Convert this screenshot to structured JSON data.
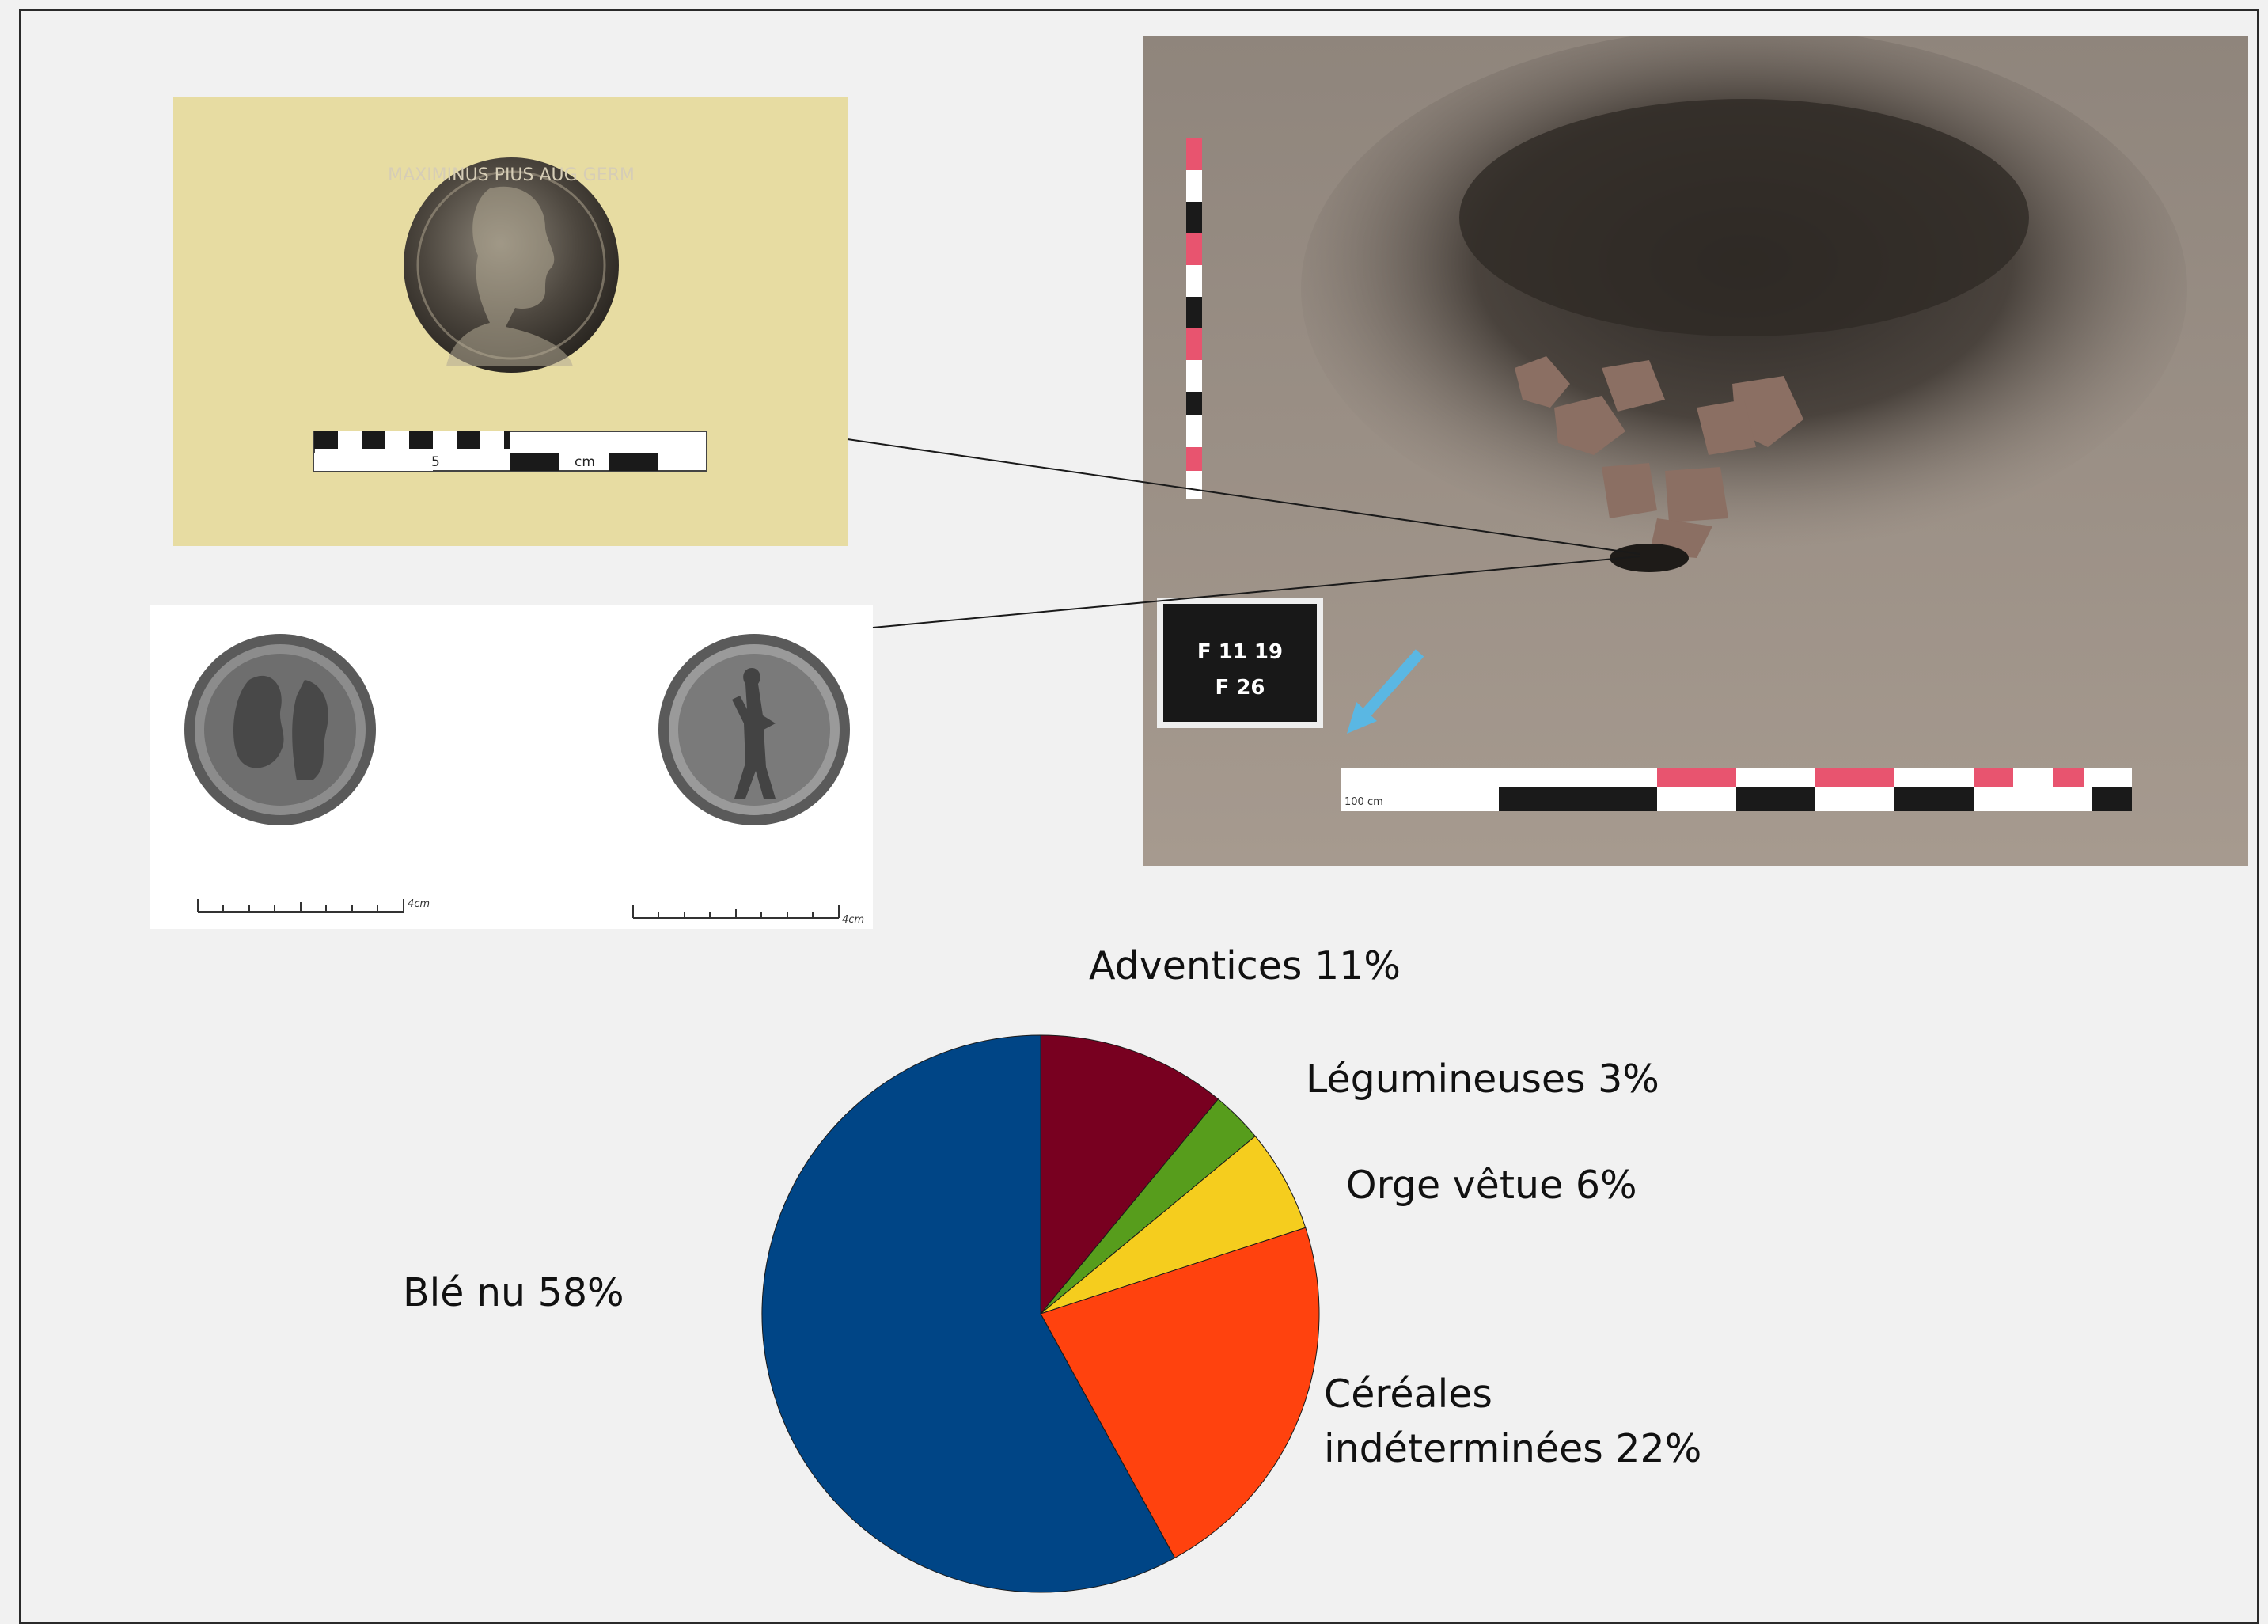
{
  "coin_photo": {
    "scale_number": "5",
    "scale_unit": "cm",
    "legend": "MAXIMINUS PIUS AUG GERM"
  },
  "coin_drawing": {
    "scale_left": "4cm",
    "scale_right": "4cm"
  },
  "excavation_photo": {
    "sign_line1": "F 11 19",
    "sign_line2": "F 26",
    "scale_label": "100 cm"
  },
  "colors": {
    "background": "#f1f1f1",
    "coin_photo_bg": "#e7dca2",
    "soil": "#9a8e83",
    "scale_pink": "#e8546f"
  },
  "chart_data": {
    "type": "pie",
    "title": "",
    "start_angle_deg": 0,
    "direction": "clockwise",
    "slices": [
      {
        "label": "Adventices",
        "value": 11,
        "display": "Adventices 11%",
        "color": "#780020"
      },
      {
        "label": "Légumineuses",
        "value": 3,
        "display": "Légumineuses 3%",
        "color": "#579d1c"
      },
      {
        "label": "Orge vêtue",
        "value": 6,
        "display": "Orge vêtue 6%",
        "color": "#f5cd1e"
      },
      {
        "label": "Céréales indéterminées",
        "value": 22,
        "display_line1": "Céréales",
        "display_line2": "indéterminées 22%",
        "color": "#ff420e"
      },
      {
        "label": "Blé nu",
        "value": 58,
        "display": "Blé nu 58%",
        "color": "#004586"
      }
    ]
  }
}
